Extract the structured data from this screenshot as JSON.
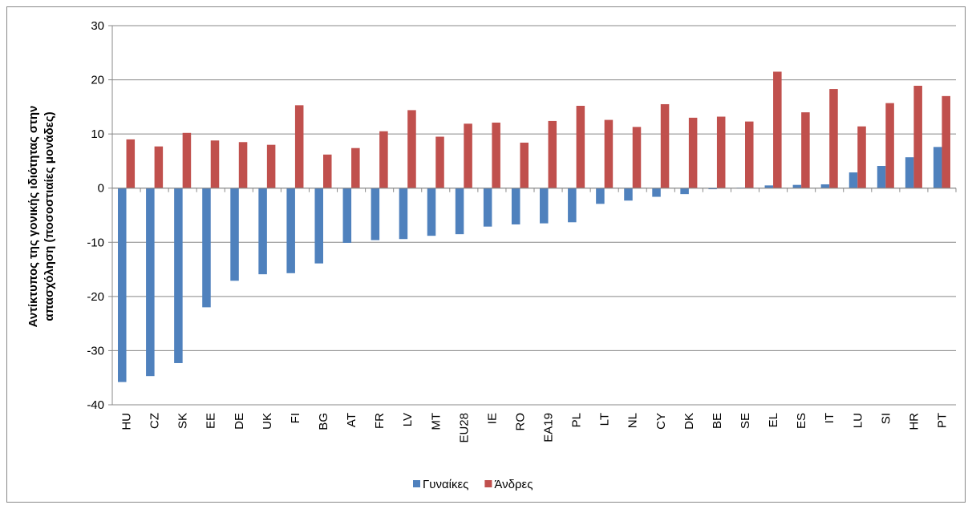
{
  "chart_data": {
    "type": "bar",
    "y_label": "Αντίκτυπος της γονικής ιδιότητας στην απασχόληση (ποσοστιαίες μονάδες)",
    "categories": [
      "HU",
      "CZ",
      "SK",
      "EE",
      "DE",
      "UK",
      "FI",
      "BG",
      "AT",
      "FR",
      "LV",
      "MT",
      "EU28",
      "IE",
      "RO",
      "EA19",
      "PL",
      "LT",
      "NL",
      "CY",
      "DK",
      "BE",
      "SE",
      "EL",
      "ES",
      "IT",
      "LU",
      "SI",
      "HR",
      "PT"
    ],
    "series": [
      {
        "name": "Γυναίκες",
        "color": "#4f81bd",
        "values": [
          -35.8,
          -34.7,
          -32.3,
          -22.0,
          -17.1,
          -15.9,
          -15.7,
          -13.9,
          -10.1,
          -9.6,
          -9.4,
          -8.8,
          -8.5,
          -7.1,
          -6.7,
          -6.5,
          -6.3,
          -2.9,
          -2.3,
          -1.6,
          -1.1,
          -0.2,
          0.1,
          0.5,
          0.6,
          0.7,
          2.9,
          4.1,
          5.7,
          7.6
        ]
      },
      {
        "name": "Άνδρες",
        "color": "#c0504d",
        "values": [
          9.0,
          7.7,
          10.2,
          8.8,
          8.5,
          8.0,
          15.3,
          6.2,
          7.4,
          10.5,
          14.4,
          9.5,
          11.9,
          12.1,
          8.4,
          12.4,
          15.2,
          12.6,
          11.3,
          15.5,
          13.0,
          13.2,
          12.3,
          21.5,
          14.0,
          18.3,
          11.4,
          15.7,
          18.9,
          17.0
        ]
      }
    ],
    "ylim": [
      -40,
      30
    ],
    "yticks": [
      -40,
      -30,
      -20,
      -10,
      0,
      10,
      20,
      30
    ],
    "grid": true,
    "legend": "bottom"
  }
}
